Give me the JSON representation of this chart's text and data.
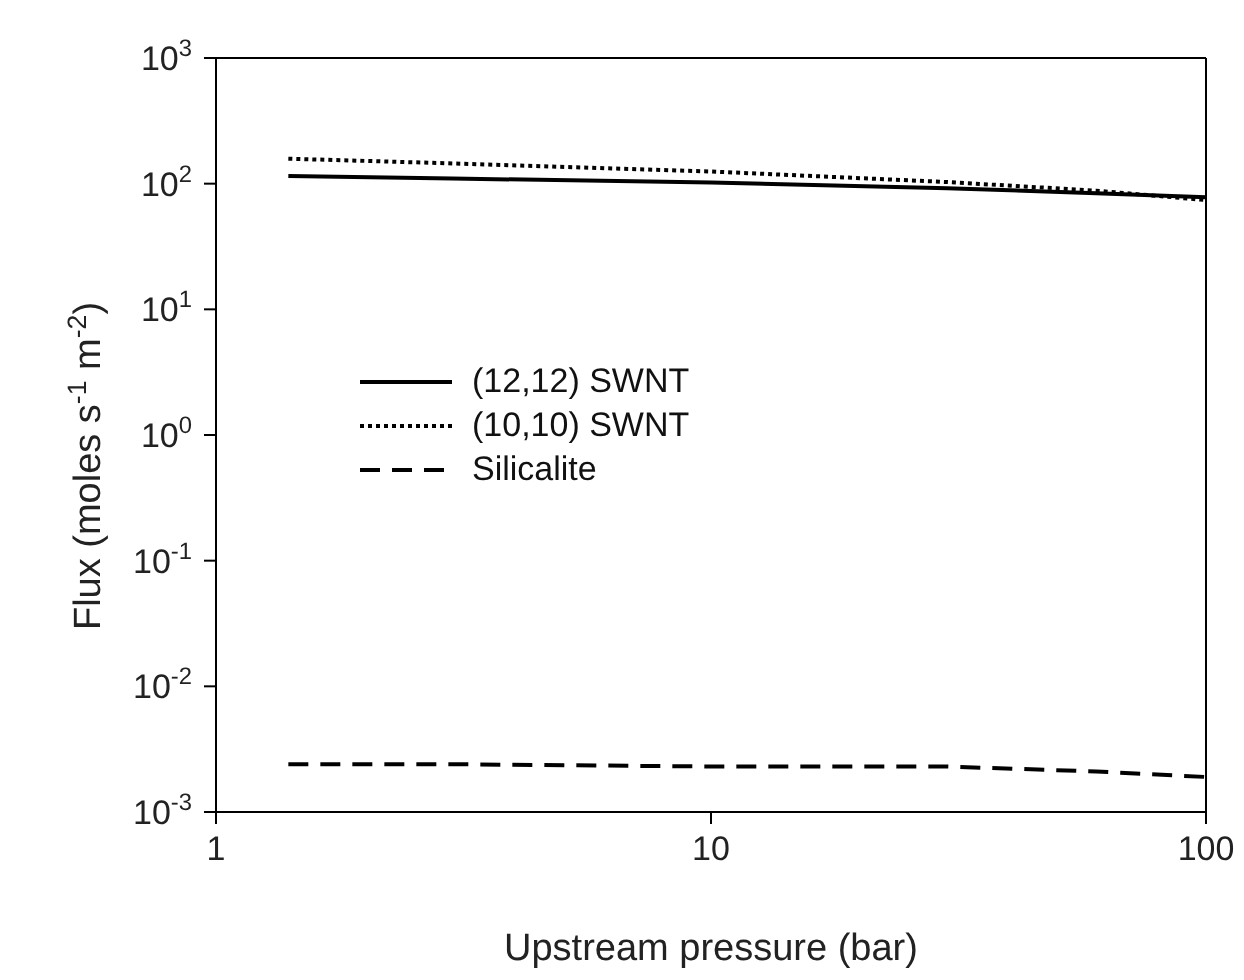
{
  "chart_data": {
    "type": "line",
    "xlabel": "Upstream pressure (bar)",
    "ylabel": "Flux (moles s$^{-1}$ m$^{-2}$)",
    "log": "xy",
    "xlim": [
      1,
      100
    ],
    "xticks": [
      1,
      10,
      100
    ],
    "ylim": [
      0.001,
      1000
    ],
    "yticks": [
      {
        "value": 0.001,
        "label": "10$^{-3}$"
      },
      {
        "value": 0.01,
        "label": "10$^{-2}$"
      },
      {
        "value": 0.1,
        "label": "10$^{-1}$"
      },
      {
        "value": 1,
        "label": "10$^{0}$"
      },
      {
        "value": 10,
        "label": "10$^{1}$"
      },
      {
        "value": 100,
        "label": "10$^{2}$"
      },
      {
        "value": 1000,
        "label": "10$^{3}$"
      }
    ],
    "x": [
      1.4,
      3,
      10,
      30,
      60,
      100
    ],
    "grid": false,
    "legend": "left",
    "marker": "none",
    "series": [
      {
        "name": "(12,12) SWNT",
        "color": "#000000",
        "line_style": "solid",
        "values": [
          115,
          110,
          102,
          92,
          84,
          78
        ]
      },
      {
        "name": "(10,10) SWNT",
        "color": "#000000",
        "line_style": "dotted",
        "values": [
          158,
          145,
          125,
          103,
          88,
          74
        ]
      },
      {
        "name": "Silicalite",
        "color": "#000000",
        "line_style": "dashed",
        "values": [
          0.0024,
          0.0024,
          0.0023,
          0.0023,
          0.0021,
          0.0019
        ]
      }
    ]
  }
}
